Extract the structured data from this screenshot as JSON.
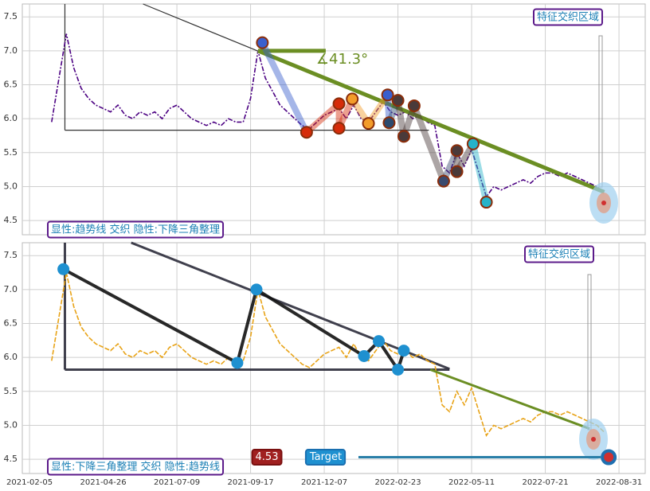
{
  "chart_data": [
    {
      "type": "line",
      "x": [
        15,
        20,
        25,
        30,
        35,
        40,
        45,
        50,
        55,
        60,
        65,
        70,
        75,
        80,
        85,
        90,
        95,
        100,
        105,
        110,
        115,
        120,
        125,
        130,
        135,
        140,
        145,
        150,
        155,
        160,
        165,
        170,
        175,
        180,
        185,
        190,
        195,
        200,
        205,
        210,
        215,
        220,
        225,
        230,
        235,
        240,
        245,
        250,
        255,
        260,
        265,
        270,
        275,
        280,
        285,
        290,
        295,
        300,
        305,
        310,
        315,
        320,
        325,
        330,
        335,
        340,
        345,
        350,
        355,
        360,
        365,
        370,
        375,
        380,
        385,
        390
      ],
      "series": [
        {
          "color": "#4b0082",
          "values": [
            5.95,
            6.6,
            7.25,
            6.75,
            6.45,
            6.3,
            6.2,
            6.15,
            6.1,
            6.2,
            6.05,
            6.0,
            6.1,
            6.05,
            6.1,
            6.0,
            6.15,
            6.2,
            6.1,
            6.0,
            5.95,
            5.9,
            5.95,
            5.9,
            6.0,
            5.95,
            5.95,
            6.3,
            7.0,
            6.6,
            6.4,
            6.2,
            6.1,
            6.0,
            5.9,
            5.85,
            5.95,
            6.05,
            6.1,
            6.15,
            6.0,
            6.2,
            6.0,
            5.95,
            6.1,
            6.25,
            6.1,
            6.05,
            6.1,
            6.0,
            6.05,
            5.95,
            5.9,
            5.3,
            5.2,
            5.5,
            5.3,
            5.55,
            5.2,
            4.85,
            5.0,
            4.95,
            5.0,
            5.05,
            5.1,
            5.05,
            5.15,
            5.2,
            5.2,
            5.15,
            5.2,
            5.15,
            5.1,
            5.05,
            5.0,
            4.9
          ]
        }
      ],
      "xlim": [
        -4.9,
        417.8
      ],
      "ylim": [
        4.29,
        7.69
      ],
      "yticks": [
        4.5,
        {
          "value": 5,
          "label": "5.0"
        },
        5.5,
        {
          "value": 6,
          "label": "6.0"
        },
        6.5,
        {
          "value": 7,
          "label": "7.0"
        },
        7.5
      ],
      "grid": true,
      "region_label": "特征交织区域",
      "pattern_label": "显性:趋势线 交织 隐性:下降三角整理",
      "triangle": {
        "top": {
          "x": [
            77,
            285
          ],
          "y": [
            7.69,
            5.84
          ]
        },
        "base": {
          "x": [
            24,
            271
          ],
          "y": [
            5.83,
            5.83
          ]
        },
        "side": {
          "x": [
            24,
            24
          ],
          "y": [
            7.69,
            5.83
          ]
        }
      },
      "trendline": {
        "x": [
          155,
          390
        ],
        "y": [
          7.0,
          4.92
        ],
        "color": "#6b8e23"
      },
      "angle_line": {
        "x": [
          155,
          201
        ],
        "y": [
          7.0,
          7.0
        ]
      },
      "angle_label": "∡41.3°",
      "pattern": {
        "x": [
          158,
          188,
          210,
          210,
          219,
          230,
          243,
          244,
          250,
          254,
          261,
          281,
          290,
          290,
          301,
          310
        ],
        "y": [
          7.12,
          5.8,
          6.22,
          5.86,
          6.29,
          5.93,
          6.35,
          5.94,
          6.27,
          5.74,
          6.19,
          5.08,
          5.53,
          5.22,
          5.63,
          4.77
        ],
        "colors": [
          "#3a5fcd",
          "#d62c0a",
          "#d62c0a",
          "#d62c0a",
          "#f39c2a",
          "#f39c2a",
          "#3a5fcd",
          "#2c4a6e",
          "#4a3a3a",
          "#4a3a3a",
          "#4a3a3a",
          "#3a4a6e",
          "#4a3a3a",
          "#4a3a3a",
          "#26b3c9",
          "#26b3c9"
        ]
      }
    },
    {
      "type": "line",
      "x": [
        15,
        20,
        25,
        30,
        35,
        40,
        45,
        50,
        55,
        60,
        65,
        70,
        75,
        80,
        85,
        90,
        95,
        100,
        105,
        110,
        115,
        120,
        125,
        130,
        135,
        140,
        145,
        150,
        155,
        160,
        165,
        170,
        175,
        180,
        185,
        190,
        195,
        200,
        205,
        210,
        215,
        220,
        225,
        230,
        235,
        240,
        245,
        250,
        255,
        260,
        265,
        270,
        275,
        280,
        285,
        290,
        295,
        300,
        305,
        310,
        315,
        320,
        325,
        330,
        335,
        340,
        345,
        350,
        355,
        360,
        365,
        370,
        375,
        380,
        385,
        390
      ],
      "series": [
        {
          "color": "#e8a317",
          "values": [
            5.95,
            6.6,
            7.25,
            6.75,
            6.45,
            6.3,
            6.2,
            6.15,
            6.1,
            6.2,
            6.05,
            6.0,
            6.1,
            6.05,
            6.1,
            6.0,
            6.15,
            6.2,
            6.1,
            6.0,
            5.95,
            5.9,
            5.95,
            5.9,
            6.0,
            5.95,
            5.95,
            6.3,
            7.0,
            6.6,
            6.4,
            6.2,
            6.1,
            6.0,
            5.9,
            5.85,
            5.95,
            6.05,
            6.1,
            6.15,
            6.0,
            6.2,
            6.0,
            5.95,
            6.1,
            6.25,
            6.1,
            6.05,
            6.1,
            6.0,
            6.05,
            5.95,
            5.9,
            5.3,
            5.2,
            5.5,
            5.3,
            5.55,
            5.2,
            4.85,
            5.0,
            4.95,
            5.0,
            5.05,
            5.1,
            5.05,
            5.15,
            5.2,
            5.2,
            5.15,
            5.2,
            5.15,
            5.1,
            5.05,
            5.0,
            4.9
          ]
        }
      ],
      "xlim": [
        -4.9,
        417.8
      ],
      "xticks": [
        {
          "value": 0,
          "label": "2021-02-05"
        },
        {
          "value": 50,
          "label": "2021-04-26"
        },
        {
          "value": 100,
          "label": "2021-07-09"
        },
        {
          "value": 150,
          "label": "2021-09-17"
        },
        {
          "value": 200,
          "label": "2021-12-07"
        },
        {
          "value": 250,
          "label": "2022-02-23"
        },
        {
          "value": 300,
          "label": "2022-05-11"
        },
        {
          "value": 350,
          "label": "2022-07-21"
        },
        {
          "value": 400,
          "label": "2022-08-31"
        }
      ],
      "ylim": [
        4.29,
        7.69
      ],
      "yticks": [
        4.5,
        {
          "value": 5,
          "label": "5.0"
        },
        5.5,
        {
          "value": 6,
          "label": "6.0"
        },
        6.5,
        {
          "value": 7,
          "label": "7.0"
        },
        7.5
      ],
      "grid": true,
      "region_label": "特征交织区域",
      "pattern_label": "显性:下降三角整理 交织 隐性:趋势线",
      "triangle": {
        "top": {
          "x": [
            69,
            285
          ],
          "y": [
            7.69,
            5.83
          ]
        },
        "base": {
          "x": [
            24,
            285
          ],
          "y": [
            5.82,
            5.82
          ]
        },
        "side": {
          "x": [
            24,
            24
          ],
          "y": [
            7.69,
            5.82
          ]
        }
      },
      "trendline": {
        "x": [
          272,
          380
        ],
        "y": [
          5.82,
          4.95
        ],
        "color": "#6b8e23"
      },
      "pattern": {
        "x": [
          23,
          141,
          154,
          227,
          237,
          250,
          254
        ],
        "y": [
          7.3,
          5.92,
          7.0,
          6.02,
          6.24,
          5.82,
          6.1
        ],
        "color": "#1e90d0"
      },
      "target": {
        "x": 393,
        "value": 4.53,
        "value_label": "4.53",
        "label": "Target"
      }
    }
  ]
}
